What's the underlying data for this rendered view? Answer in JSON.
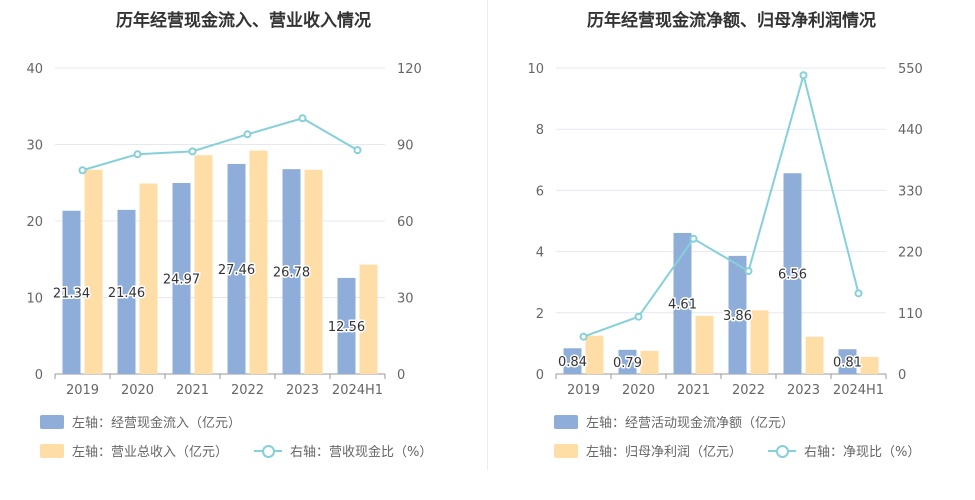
{
  "colors": {
    "bar1": "#8fadd9",
    "bar2": "#ffdda6",
    "line": "#86d0d9",
    "grid": "#e4e8f2",
    "axis": "#999999"
  },
  "chart_data": [
    {
      "type": "bar",
      "title": "历年经营现金流入、营业收入情况",
      "categories": [
        "2019",
        "2020",
        "2021",
        "2022",
        "2023",
        "2024H1"
      ],
      "left_axis": {
        "ylim": [
          0,
          40
        ],
        "ticks": [
          "0",
          "10",
          "20",
          "30",
          "40"
        ]
      },
      "right_axis": {
        "ylim": [
          0,
          120
        ],
        "ticks": [
          "0",
          "30",
          "60",
          "90",
          "120"
        ]
      },
      "series": [
        {
          "name": "左轴：经营现金流入（亿元）",
          "axis": "left",
          "kind": "bar",
          "values": [
            21.34,
            21.46,
            24.97,
            27.46,
            26.78,
            12.56
          ],
          "labels": [
            "21.34",
            "21.46",
            "24.97",
            "27.46",
            "26.78",
            "12.56"
          ]
        },
        {
          "name": "左轴：营业总收入（亿元）",
          "axis": "left",
          "kind": "bar",
          "values": [
            26.7,
            24.9,
            28.6,
            29.2,
            26.7,
            14.3
          ]
        },
        {
          "name": "右轴：营收现金比（%）",
          "axis": "right",
          "kind": "line",
          "values": [
            79.9,
            86.2,
            87.3,
            94.0,
            100.3,
            87.8
          ]
        }
      ],
      "legend_position": "bottom-left"
    },
    {
      "type": "bar",
      "title": "历年经营现金流净额、归母净利润情况",
      "categories": [
        "2019",
        "2020",
        "2021",
        "2022",
        "2023",
        "2024H1"
      ],
      "left_axis": {
        "ylim": [
          0,
          10
        ],
        "ticks": [
          "0",
          "2",
          "4",
          "6",
          "8",
          "10"
        ]
      },
      "right_axis": {
        "ylim": [
          0,
          550
        ],
        "ticks": [
          "0",
          "110",
          "220",
          "330",
          "440",
          "550"
        ]
      },
      "series": [
        {
          "name": "左轴：经营活动现金流净额（亿元）",
          "axis": "left",
          "kind": "bar",
          "values": [
            0.84,
            0.79,
            4.61,
            3.86,
            6.56,
            0.81
          ],
          "labels": [
            "0.84",
            "0.79",
            "4.61",
            "3.86",
            "6.56",
            "0.81"
          ]
        },
        {
          "name": "左轴：归母净利润（亿元）",
          "axis": "left",
          "kind": "bar",
          "values": [
            1.25,
            0.76,
            1.9,
            2.08,
            1.22,
            0.56
          ]
        },
        {
          "name": "右轴：净现比（%）",
          "axis": "right",
          "kind": "line",
          "values": [
            67,
            103,
            243,
            185,
            537,
            145
          ]
        }
      ],
      "legend_position": "bottom-left"
    }
  ]
}
